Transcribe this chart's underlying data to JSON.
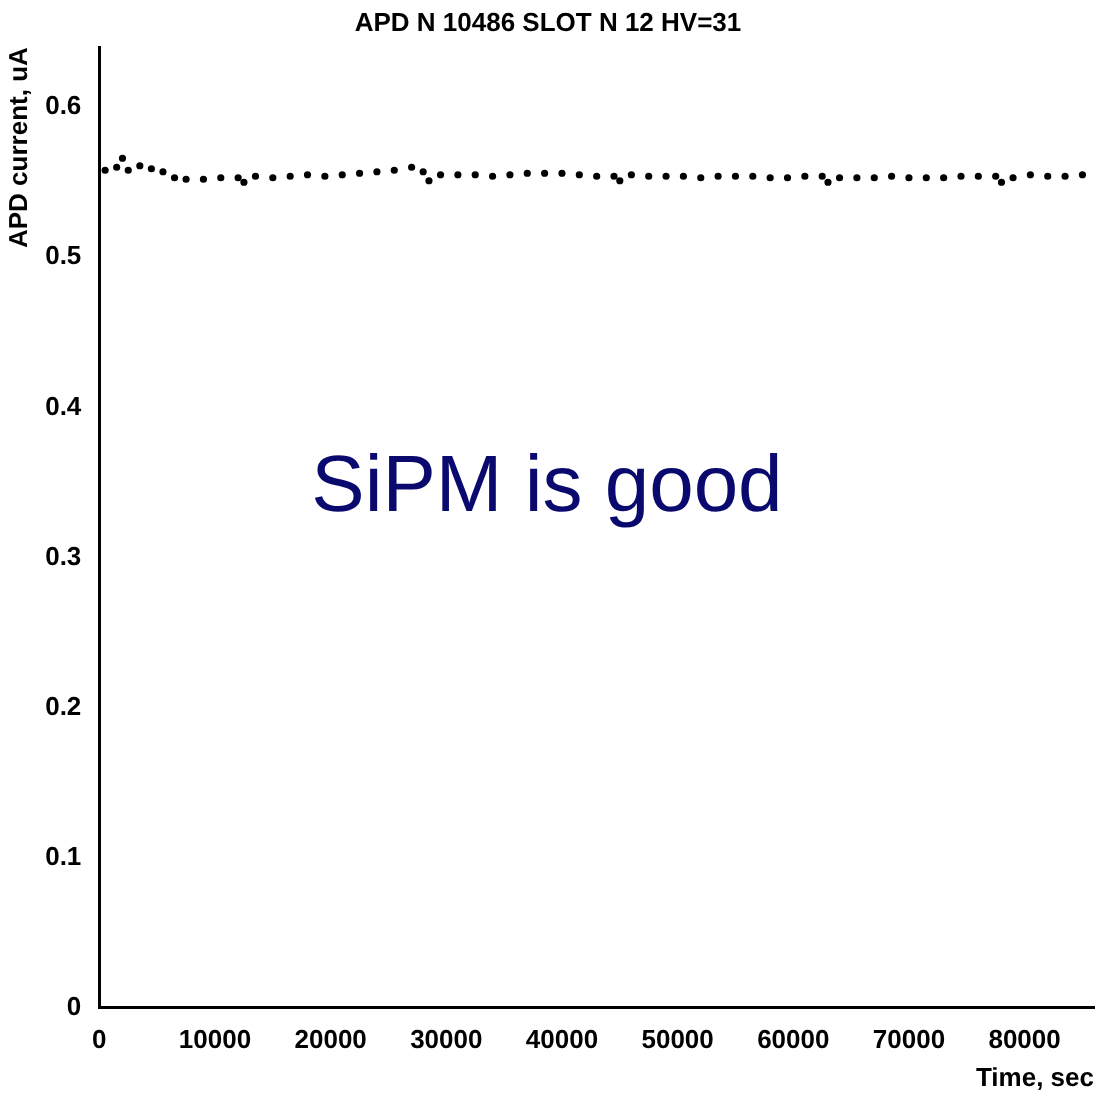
{
  "chart_data": {
    "type": "scatter",
    "title": "APD N 10486 SLOT N 12 HV=31",
    "xlabel": "Time, sec",
    "ylabel": "APD current, uA",
    "annotations": [
      "SiPM is good"
    ],
    "xlim": [
      0,
      86000
    ],
    "ylim": [
      0,
      0.64
    ],
    "xticks": [
      0,
      10000,
      20000,
      30000,
      40000,
      50000,
      60000,
      70000,
      80000
    ],
    "yticks": [
      0,
      0.1,
      0.2,
      0.3,
      0.4,
      0.5,
      0.6
    ],
    "grid": false,
    "legend": false,
    "marker": "circle",
    "series": [
      {
        "color": "#000000",
        "x": [
          500,
          1500,
          2500,
          3500,
          4500,
          5500,
          6500,
          7500,
          9000,
          10500,
          12000,
          13500,
          15000,
          16500,
          18000,
          19500,
          21000,
          22500,
          24000,
          25500,
          27000,
          28000,
          29500,
          31000,
          32500,
          34000,
          35500,
          37000,
          38500,
          40000,
          41500,
          43000,
          44500,
          46000,
          47500,
          49000,
          50500,
          52000,
          53500,
          55000,
          56500,
          58000,
          59500,
          61000,
          62500,
          64000,
          65500,
          67000,
          68500,
          70000,
          71500,
          73000,
          74500,
          76000,
          77500,
          79000,
          80500,
          82000,
          83500,
          85000,
          2000,
          12500,
          28500,
          45000,
          63000,
          78000
        ],
        "values": [
          0.558,
          0.56,
          0.558,
          0.561,
          0.559,
          0.557,
          0.553,
          0.552,
          0.552,
          0.553,
          0.553,
          0.554,
          0.553,
          0.554,
          0.555,
          0.554,
          0.555,
          0.556,
          0.557,
          0.558,
          0.56,
          0.557,
          0.555,
          0.555,
          0.555,
          0.554,
          0.555,
          0.556,
          0.556,
          0.556,
          0.555,
          0.554,
          0.554,
          0.555,
          0.554,
          0.554,
          0.554,
          0.553,
          0.554,
          0.554,
          0.554,
          0.553,
          0.553,
          0.554,
          0.554,
          0.553,
          0.553,
          0.553,
          0.554,
          0.553,
          0.553,
          0.553,
          0.554,
          0.554,
          0.554,
          0.553,
          0.555,
          0.554,
          0.554,
          0.555,
          0.566,
          0.55,
          0.551,
          0.551,
          0.55,
          0.55
        ]
      }
    ]
  }
}
